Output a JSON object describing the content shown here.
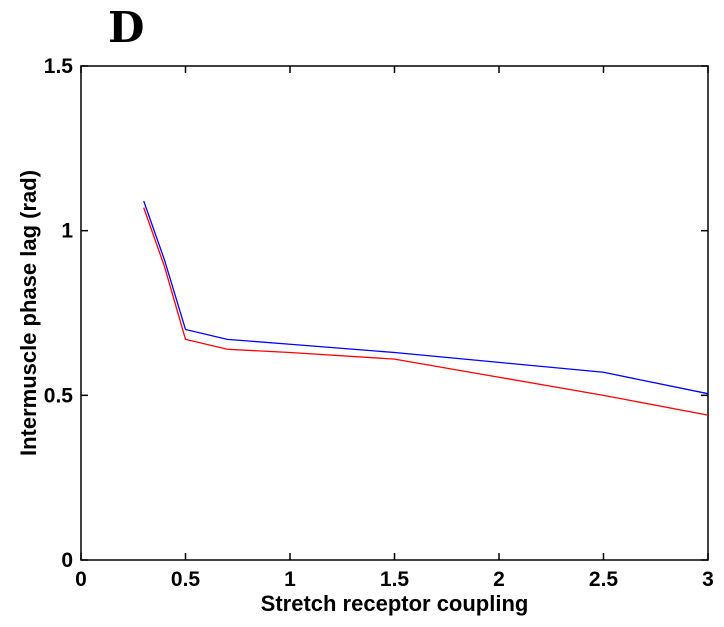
{
  "panel_label": "D",
  "chart_data": {
    "type": "line",
    "title": "",
    "xlabel": "Stretch receptor coupling",
    "ylabel": "Intermuscle phase lag (rad)",
    "xlim": [
      0,
      3
    ],
    "ylim": [
      0,
      1.5
    ],
    "xticks": [
      0,
      0.5,
      1,
      1.5,
      2,
      2.5,
      3
    ],
    "xtick_labels": [
      "0",
      "0.5",
      "1",
      "1.5",
      "2",
      "2.5",
      "3"
    ],
    "yticks": [
      0,
      0.5,
      1,
      1.5
    ],
    "ytick_labels": [
      "0",
      "0.5",
      "1",
      "1.5"
    ],
    "grid": false,
    "legend": "none",
    "series": [
      {
        "color": "#0000ff",
        "x": [
          0.3,
          0.4,
          0.5,
          0.7,
          1.0,
          1.5,
          2.0,
          2.5,
          3.0
        ],
        "y": [
          1.09,
          0.91,
          0.7,
          0.67,
          0.655,
          0.63,
          0.6,
          0.57,
          0.505
        ]
      },
      {
        "color": "#ff0000",
        "x": [
          0.3,
          0.4,
          0.5,
          0.7,
          1.0,
          1.5,
          2.0,
          2.5,
          3.0
        ],
        "y": [
          1.07,
          0.89,
          0.67,
          0.64,
          0.63,
          0.61,
          0.555,
          0.5,
          0.44
        ]
      }
    ]
  }
}
